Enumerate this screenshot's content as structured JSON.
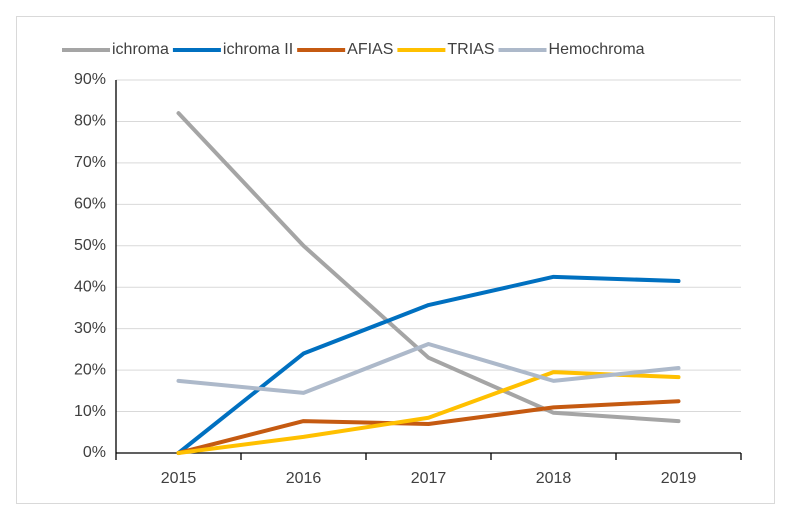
{
  "chart_data": {
    "type": "line",
    "categories": [
      "2015",
      "2016",
      "2017",
      "2018",
      "2019"
    ],
    "series": [
      {
        "name": "ichroma",
        "color": "#a5a5a5",
        "values": [
          82,
          50,
          23,
          9.7,
          7.7
        ]
      },
      {
        "name": "ichroma II",
        "color": "#0070c0",
        "values": [
          0,
          24,
          35.7,
          42.5,
          41.5
        ]
      },
      {
        "name": "AFIAS",
        "color": "#c55a11",
        "values": [
          0,
          7.7,
          7,
          11,
          12.5
        ]
      },
      {
        "name": "TRIAS",
        "color": "#ffc000",
        "values": [
          0,
          3.9,
          8.5,
          19.5,
          18.3
        ]
      },
      {
        "name": "Hemochroma",
        "color": "#adb9ca",
        "values": [
          17.4,
          14.5,
          26.3,
          17.4,
          20.5
        ]
      }
    ],
    "ylim": [
      0,
      90
    ],
    "yticks": [
      {
        "value": 0,
        "label": "0%"
      },
      {
        "value": 10,
        "label": "10%"
      },
      {
        "value": 20,
        "label": "20%"
      },
      {
        "value": 30,
        "label": "30%"
      },
      {
        "value": 40,
        "label": "40%"
      },
      {
        "value": 50,
        "label": "50%"
      },
      {
        "value": 60,
        "label": "60%"
      },
      {
        "value": 70,
        "label": "70%"
      },
      {
        "value": 80,
        "label": "80%"
      },
      {
        "value": 90,
        "label": "90%"
      }
    ],
    "grid": true,
    "legend": "top"
  }
}
